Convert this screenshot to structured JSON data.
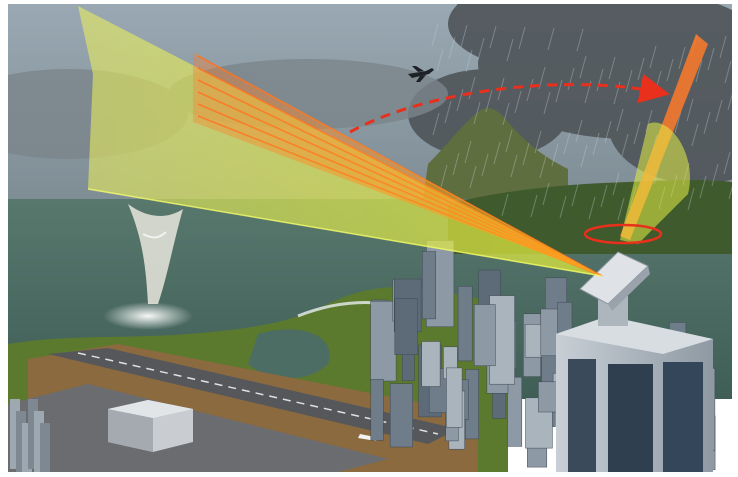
{
  "scene": {
    "subject": "phased-array-weather-radar-illustration",
    "colors": {
      "sky": "#8a9aa6",
      "storm_cloud": "#4f5559",
      "sea": "#4e6f68",
      "land": "#5c7a2e",
      "beam_fill": "#e8ef3a",
      "beam_core": "#ff6a1a",
      "scan_arrow": "#e8301c",
      "runway": "#55575a",
      "building": "#8d9aa6"
    },
    "elements": [
      "storm-sky",
      "rain-curtain",
      "mountain",
      "sea",
      "waterspout",
      "coastline",
      "airport-runway",
      "city-buildings",
      "radar-tower",
      "phased-array-antenna",
      "wide-radar-beam",
      "narrow-radar-beam",
      "scan-direction-arrow",
      "rotation-ellipse",
      "airplane"
    ]
  }
}
